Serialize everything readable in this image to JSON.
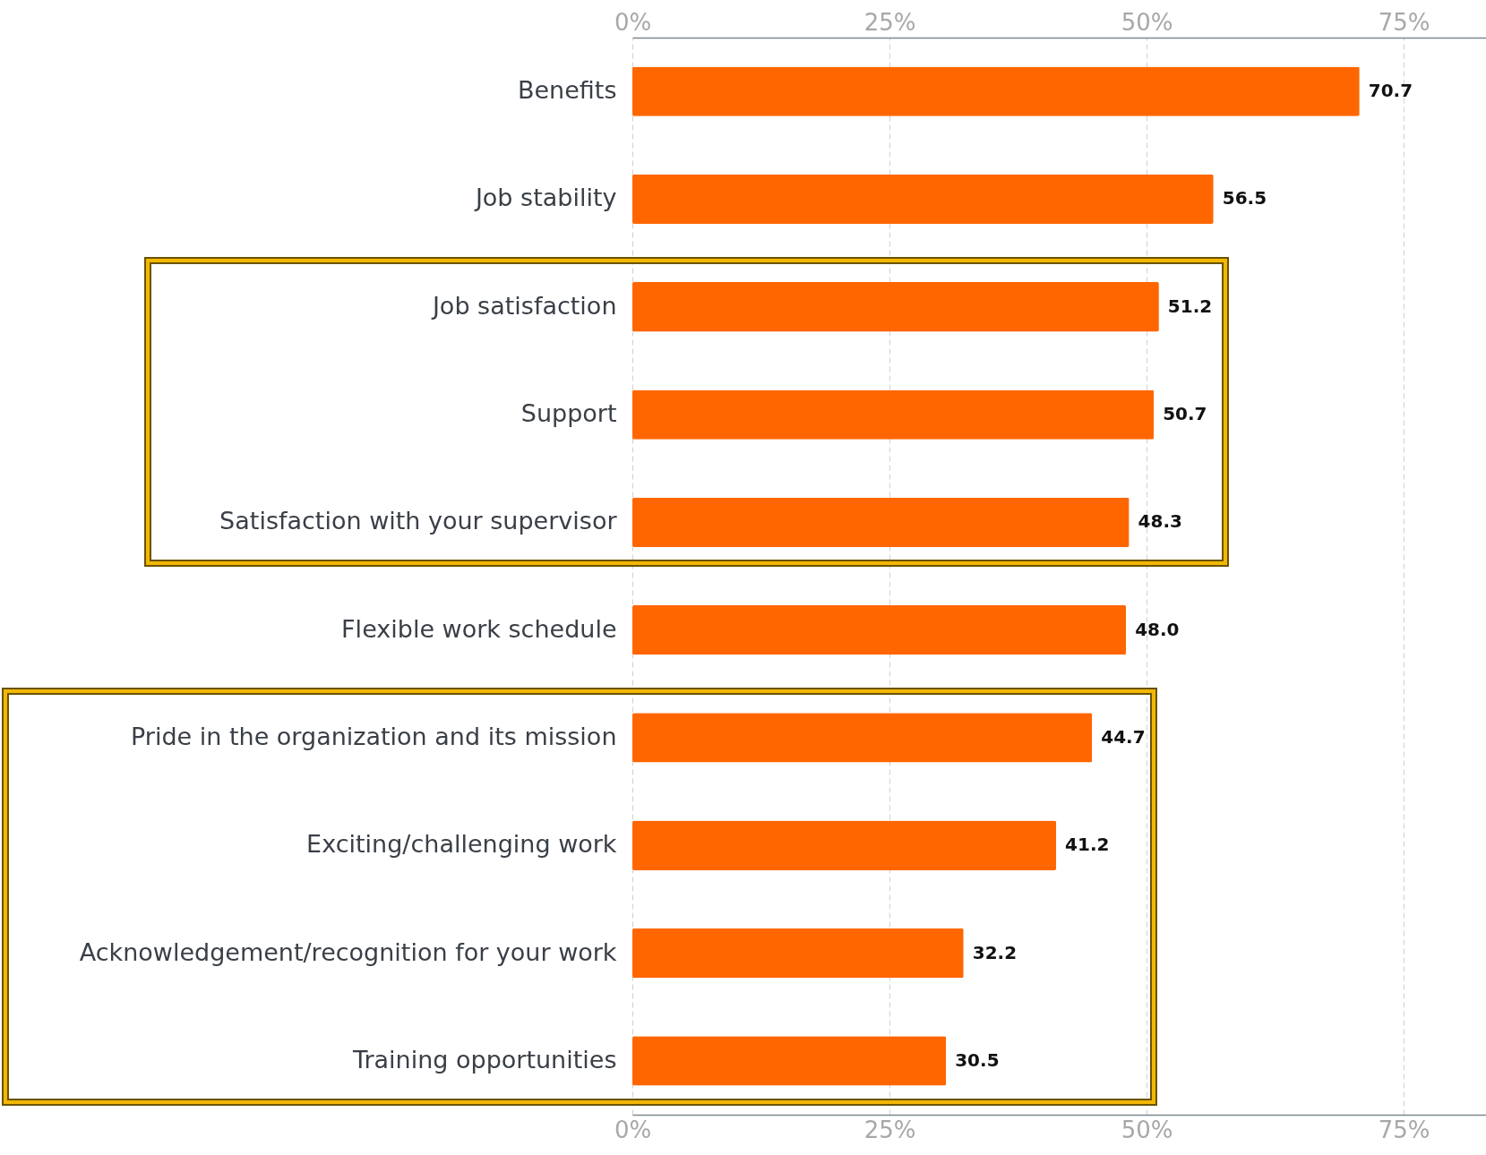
{
  "chart_data": {
    "type": "bar",
    "orientation": "horizontal",
    "categories": [
      "Benefits",
      "Job stability",
      "Job satisfaction",
      "Support",
      "Satisfaction with your supervisor",
      "Flexible work schedule",
      "Pride in the organization and its mission",
      "Exciting/challenging work",
      "Acknowledgement/recognition for your work",
      "Training opportunities"
    ],
    "values": [
      70.7,
      56.5,
      51.2,
      50.7,
      48.3,
      48.0,
      44.7,
      41.2,
      32.2,
      30.5
    ],
    "value_labels": [
      "70.7",
      "56.5",
      "51.2",
      "50.7",
      "48.3",
      "48.0",
      "44.7",
      "41.2",
      "32.2",
      "30.5"
    ],
    "color": "#ff6600",
    "xlim": [
      0,
      83
    ],
    "xticks": [
      {
        "value": 0,
        "label": "0%"
      },
      {
        "value": 25,
        "label": "25%"
      },
      {
        "value": 50,
        "label": "50%"
      },
      {
        "value": 75,
        "label": "75%"
      }
    ],
    "x2lim": [
      0,
      83
    ],
    "x2ticks": [
      {
        "value": 0,
        "label": "0%"
      },
      {
        "value": 25,
        "label": "25%"
      },
      {
        "value": 50,
        "label": "50%"
      },
      {
        "value": 75,
        "label": "75%"
      }
    ],
    "grid": "x"
  }
}
